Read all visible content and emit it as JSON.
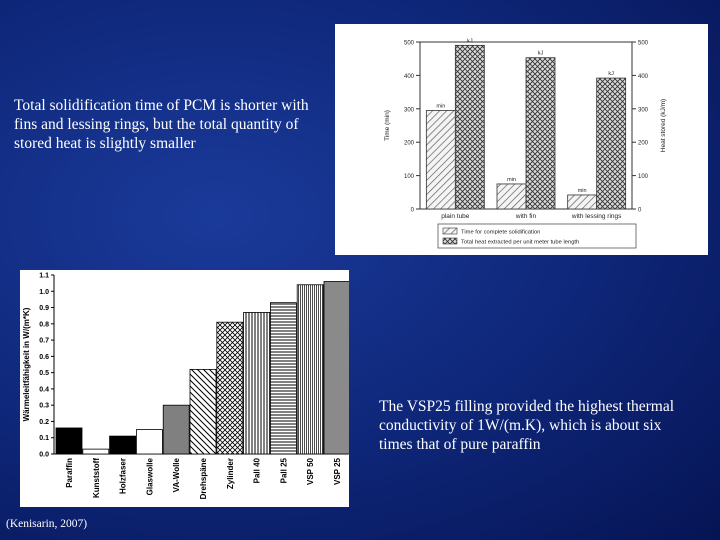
{
  "slide": {
    "left_text": "Total solidification time of  PCM is shorter with fins and lessing rings, but the total quantity of stored heat is slightly smaller",
    "right_text_lines": [
      "The VSP25 filling provided the highest thermal",
      "conductivity of 1W/(m.K), which is about six",
      "times that of pure paraffin"
    ],
    "citation": "(Kenisarin, 2007)"
  },
  "chart_data": [
    {
      "type": "bar",
      "categories": [
        "plain tube",
        "with fin",
        "with lessing rings"
      ],
      "series": [
        {
          "name": "Time for complete solidification",
          "unit_label": "min",
          "values": [
            295,
            75,
            42
          ]
        },
        {
          "name": "Total heat extracted per unit meter tube length",
          "unit_label": "kJ",
          "values": [
            490,
            453,
            392
          ]
        }
      ],
      "ylabel": "Time (min)",
      "y2label": "Heat stored (kJ/m)",
      "ylim": [
        0,
        500
      ],
      "yticks": [
        0,
        100,
        200,
        300,
        400,
        500
      ],
      "grid": false,
      "legend": "bottom"
    },
    {
      "type": "bar",
      "categories": [
        "Paraffin",
        "Kunststoff",
        "Holzfaser",
        "Glaswolle",
        "VA-Wolle",
        "Drehspäne",
        "Zylinder",
        "Pall 40",
        "Pall 25",
        "VSP 50",
        "VSP 25"
      ],
      "values": [
        0.16,
        0.03,
        0.11,
        0.15,
        0.3,
        0.52,
        0.81,
        0.87,
        0.93,
        1.04,
        1.06
      ],
      "ylabel": "Wärmeleitfähigkeit in W/(m*K)",
      "ylim": [
        0,
        1.1
      ],
      "yticks": [
        "0.0",
        "0.1",
        "0.2",
        "0.3",
        "0.4",
        "0.5",
        "0.6",
        "0.7",
        "0.8",
        "0.9",
        "1.0",
        "1.1"
      ],
      "grid": false
    }
  ]
}
